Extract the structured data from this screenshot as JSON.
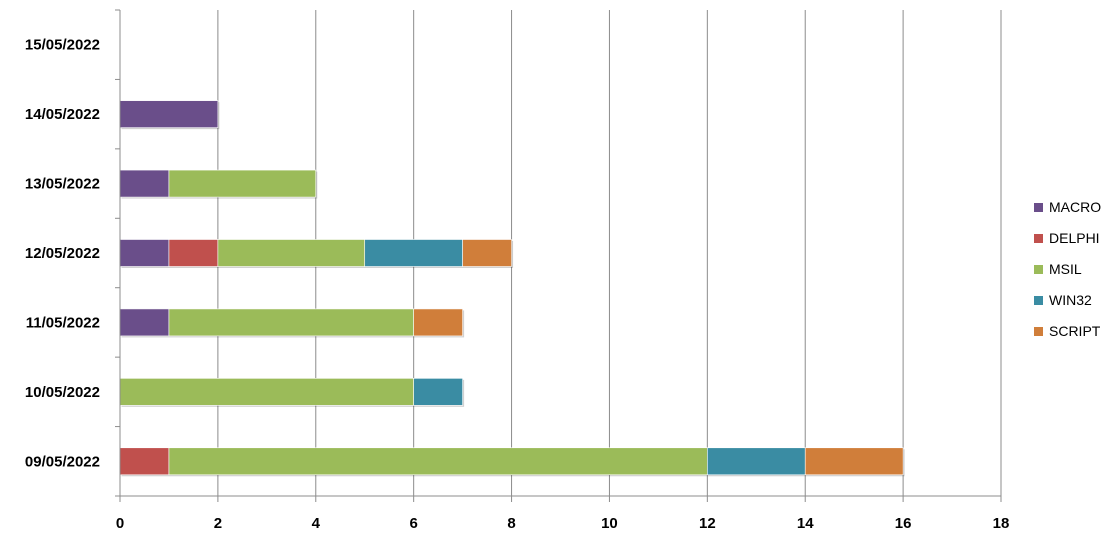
{
  "chart_data": {
    "type": "bar",
    "orientation": "horizontal",
    "stacked": true,
    "categories": [
      "09/05/2022",
      "10/05/2022",
      "11/05/2022",
      "12/05/2022",
      "13/05/2022",
      "14/05/2022",
      "15/05/2022"
    ],
    "series": [
      {
        "name": "MACRO",
        "color": "#6A4E8A",
        "values": [
          0,
          0,
          1,
          1,
          1,
          2,
          0
        ]
      },
      {
        "name": "DELPHI",
        "color": "#C0504D",
        "values": [
          1,
          0,
          0,
          1,
          0,
          0,
          0
        ]
      },
      {
        "name": "MSIL",
        "color": "#9BBB59",
        "values": [
          11,
          6,
          5,
          3,
          3,
          0,
          0
        ]
      },
      {
        "name": "WIN32",
        "color": "#3A8CA3",
        "values": [
          2,
          1,
          0,
          2,
          0,
          0,
          0
        ]
      },
      {
        "name": "SCRIPT",
        "color": "#D07E3A",
        "values": [
          2,
          0,
          1,
          1,
          0,
          0,
          0
        ]
      }
    ],
    "xlim": [
      0,
      18
    ],
    "xticks": [
      "0",
      "2",
      "4",
      "6",
      "8",
      "10",
      "12",
      "14",
      "16",
      "18"
    ],
    "grid": "vertical",
    "legend": "right"
  }
}
